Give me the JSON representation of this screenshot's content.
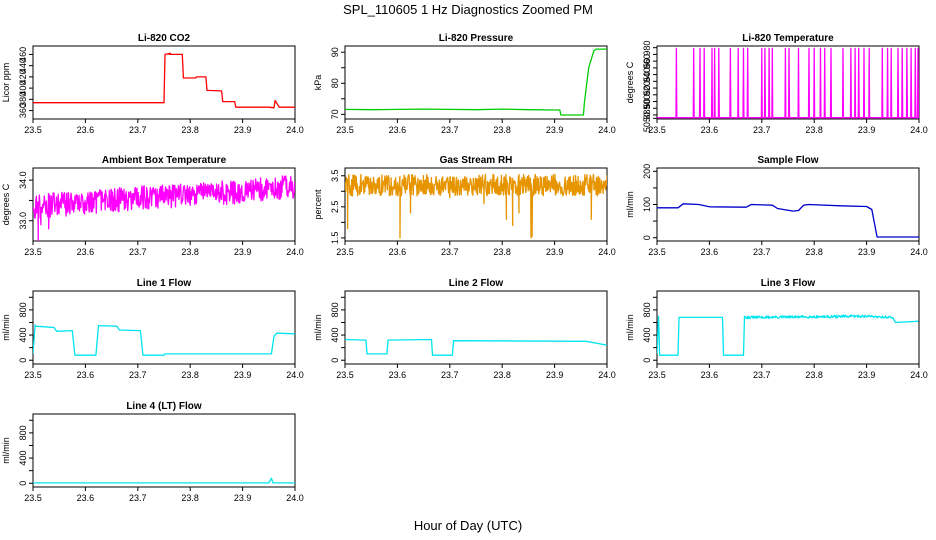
{
  "figure": {
    "title": "SPL_110605  1 Hz Diagnostics Zoomed PM",
    "xlabel": "Hour of Day (UTC)"
  },
  "chart_data": [
    {
      "type": "line",
      "title": "Li-820 CO2",
      "ylabel": "Licor ppm",
      "xlim": [
        23.5,
        24.0
      ],
      "ylim": [
        345,
        475
      ],
      "xticks": [
        "23.5",
        "23.6",
        "23.7",
        "23.8",
        "23.9",
        "24.0"
      ],
      "yticks": [
        360,
        380,
        400,
        420,
        440,
        460
      ],
      "color": "#ff0000",
      "series": [
        {
          "x": [
            23.5,
            23.6,
            23.7,
            23.75,
            23.752,
            23.762,
            23.76,
            23.785,
            23.787,
            23.81,
            23.812,
            23.83,
            23.832,
            23.86,
            23.862,
            23.885,
            23.887,
            23.95,
            23.96,
            23.962,
            23.97,
            24.0
          ],
          "y": [
            374,
            374,
            374,
            374,
            460,
            462,
            460,
            460,
            418,
            418,
            420,
            420,
            396,
            395,
            376,
            376,
            366,
            366,
            365,
            378,
            366,
            366
          ]
        }
      ]
    },
    {
      "type": "line",
      "title": "Li-820 Pressure",
      "ylabel": "kPa",
      "xlim": [
        23.5,
        24.0
      ],
      "ylim": [
        68.5,
        92
      ],
      "xticks": [
        "23.5",
        "23.6",
        "23.7",
        "23.8",
        "23.9",
        "24.0"
      ],
      "yticks": [
        70,
        75,
        80,
        85,
        90
      ],
      "ytick_labels": [
        "70",
        "",
        "80",
        "",
        "90"
      ],
      "color": "#00cc00",
      "series": [
        {
          "x": [
            23.5,
            23.55,
            23.6,
            23.65,
            23.7,
            23.75,
            23.8,
            23.85,
            23.9,
            23.91,
            23.912,
            23.955,
            23.957,
            23.965,
            23.975,
            23.98,
            24.0
          ],
          "y": [
            71.6,
            71.5,
            71.6,
            71.7,
            71.6,
            71.5,
            71.7,
            71.5,
            71.4,
            71.4,
            69.8,
            69.8,
            74.0,
            85.0,
            90.5,
            91.0,
            91.0
          ]
        }
      ]
    },
    {
      "type": "line",
      "title": "Li-820 Temperature",
      "ylabel": "degrees C",
      "xlim": [
        23.5,
        24.0
      ],
      "ylim": [
        50.884,
        50.9925
      ],
      "xticks": [
        "23.5",
        "23.6",
        "23.7",
        "23.8",
        "23.9",
        "24.0"
      ],
      "yticks": [
        50.885,
        50.89,
        50.9,
        50.91,
        50.92,
        50.93,
        50.94,
        50.95,
        50.96,
        50.97,
        50.98,
        50.99
      ],
      "ytick_labels": [
        "50.885",
        "",
        "50.900",
        "",
        "50.920",
        "",
        "50.940",
        "",
        "50.960",
        "",
        "50.980",
        ""
      ],
      "color": "#ff00ff",
      "baseline": 50.886,
      "spike_top": 50.989,
      "spikes": [
        23.537,
        23.57,
        23.582,
        23.59,
        23.605,
        23.61,
        23.618,
        23.64,
        23.655,
        23.665,
        23.673,
        23.7,
        23.706,
        23.714,
        23.72,
        23.745,
        23.752,
        23.77,
        23.79,
        23.8,
        23.812,
        23.82,
        23.832,
        23.855,
        23.87,
        23.878,
        23.885,
        23.895,
        23.905,
        23.93,
        23.94,
        23.947,
        23.96,
        23.968,
        23.977,
        23.985,
        23.993,
        23.998
      ]
    },
    {
      "type": "line",
      "title": "Ambient Box Temperature",
      "ylabel": "degrees C",
      "xlim": [
        23.5,
        24.0
      ],
      "ylim": [
        32.5,
        34.3
      ],
      "xticks": [
        "23.5",
        "23.6",
        "23.7",
        "23.8",
        "23.9",
        "24.0"
      ],
      "yticks": [
        33.0,
        33.5,
        34.0
      ],
      "ytick_labels": [
        "33.0",
        "",
        "34.0"
      ],
      "color": "#ff00ff",
      "trend": [
        [
          23.5,
          33.35
        ],
        [
          23.6,
          33.45
        ],
        [
          23.7,
          33.55
        ],
        [
          23.8,
          33.65
        ],
        [
          23.9,
          33.72
        ],
        [
          24.0,
          33.85
        ]
      ],
      "noise": 0.3,
      "dips": [
        [
          23.51,
          32.5
        ],
        [
          23.515,
          32.9
        ],
        [
          23.53,
          32.8
        ]
      ]
    },
    {
      "type": "line",
      "title": "Gas Stream RH",
      "ylabel": "percent",
      "xlim": [
        23.5,
        24.0
      ],
      "ylim": [
        1.4,
        3.75
      ],
      "xticks": [
        "23.5",
        "23.6",
        "23.7",
        "23.8",
        "23.9",
        "24.0"
      ],
      "yticks": [
        1.5,
        2.0,
        2.5,
        3.0,
        3.5
      ],
      "ytick_labels": [
        "1.5",
        "",
        "2.5",
        "",
        "3.5"
      ],
      "color": "#e69500",
      "trend": [
        [
          23.5,
          3.2
        ],
        [
          24.0,
          3.2
        ]
      ],
      "noise": 0.35,
      "dips": [
        [
          23.505,
          1.8
        ],
        [
          23.605,
          1.5
        ],
        [
          23.625,
          2.3
        ],
        [
          23.7,
          2.8
        ],
        [
          23.765,
          2.6
        ],
        [
          23.808,
          2.1
        ],
        [
          23.82,
          1.9
        ],
        [
          23.832,
          2.3
        ],
        [
          23.855,
          1.5
        ],
        [
          23.857,
          1.55
        ],
        [
          23.97,
          2.1
        ]
      ]
    },
    {
      "type": "line",
      "title": "Sample Flow",
      "ylabel": "ml/min",
      "xlim": [
        23.5,
        24.0
      ],
      "ylim": [
        -10,
        210
      ],
      "xticks": [
        "23.5",
        "23.6",
        "23.7",
        "23.8",
        "23.9",
        "24.0"
      ],
      "yticks": [
        0,
        50,
        100,
        150,
        200
      ],
      "ytick_labels": [
        "0",
        "",
        "100",
        "",
        "200"
      ],
      "color": "#0000cc",
      "series": [
        {
          "x": [
            23.5,
            23.54,
            23.55,
            23.58,
            23.6,
            23.67,
            23.68,
            23.72,
            23.73,
            23.76,
            23.77,
            23.78,
            23.79,
            23.85,
            23.9,
            23.91,
            23.92,
            23.93,
            24.0
          ],
          "y": [
            90,
            90,
            102,
            100,
            93,
            92,
            100,
            98,
            88,
            80,
            82,
            98,
            100,
            96,
            94,
            85,
            2,
            2,
            2
          ]
        }
      ]
    },
    {
      "type": "line",
      "title": "Line 1 Flow",
      "ylabel": "ml/min",
      "xlim": [
        23.5,
        24.0
      ],
      "ylim": [
        -60,
        1100
      ],
      "xticks": [
        "23.5",
        "23.6",
        "23.7",
        "23.8",
        "23.9",
        "24.0"
      ],
      "yticks": [
        0,
        200,
        400,
        600,
        800,
        1000
      ],
      "ytick_labels": [
        "0",
        "400",
        "800"
      ],
      "ytick_label_values": [
        0,
        400,
        800
      ],
      "color": "#00e5ee",
      "series": [
        {
          "x": [
            23.5,
            23.504,
            23.505,
            23.54,
            23.545,
            23.575,
            23.58,
            23.62,
            23.625,
            23.66,
            23.665,
            23.705,
            23.71,
            23.75,
            23.752,
            23.955,
            23.96,
            23.965,
            24.0
          ],
          "y": [
            100,
            560,
            540,
            520,
            460,
            470,
            80,
            80,
            550,
            540,
            480,
            470,
            80,
            80,
            100,
            100,
            380,
            430,
            420
          ]
        }
      ]
    },
    {
      "type": "line",
      "title": "Line 2 Flow",
      "ylabel": "ml/min",
      "xlim": [
        23.5,
        24.0
      ],
      "ylim": [
        -60,
        1100
      ],
      "xticks": [
        "23.5",
        "23.6",
        "23.7",
        "23.8",
        "23.9",
        "24.0"
      ],
      "yticks": [
        0,
        200,
        400,
        600,
        800,
        1000
      ],
      "ytick_labels": [
        "0",
        "400",
        "800"
      ],
      "ytick_label_values": [
        0,
        400,
        800
      ],
      "color": "#00e5ee",
      "series": [
        {
          "x": [
            23.5,
            23.54,
            23.542,
            23.58,
            23.582,
            23.665,
            23.667,
            23.705,
            23.707,
            23.96,
            24.0
          ],
          "y": [
            330,
            320,
            100,
            100,
            320,
            330,
            80,
            80,
            310,
            300,
            240
          ]
        }
      ]
    },
    {
      "type": "line",
      "title": "Line 3 Flow",
      "ylabel": "ml/min",
      "xlim": [
        23.5,
        24.0
      ],
      "ylim": [
        -60,
        1100
      ],
      "xticks": [
        "23.5",
        "23.6",
        "23.7",
        "23.8",
        "23.9",
        "24.0"
      ],
      "yticks": [
        0,
        200,
        400,
        600,
        800,
        1000
      ],
      "ytick_labels": [
        "0",
        "400",
        "800"
      ],
      "ytick_label_values": [
        0,
        400,
        800
      ],
      "color": "#00e5ee",
      "series": [
        {
          "x": [
            23.5,
            23.503,
            23.505,
            23.54,
            23.542,
            23.625,
            23.627,
            23.665,
            23.667,
            23.67,
            23.8,
            23.9,
            23.95,
            23.955,
            24.0
          ],
          "y": [
            100,
            700,
            80,
            80,
            680,
            680,
            80,
            80,
            700,
            680,
            690,
            700,
            680,
            600,
            620
          ]
        }
      ]
    },
    {
      "type": "line",
      "title": "Line 4 (LT) Flow",
      "ylabel": "ml/min",
      "xlim": [
        23.5,
        24.0
      ],
      "ylim": [
        -60,
        1100
      ],
      "xticks": [
        "23.5",
        "23.6",
        "23.7",
        "23.8",
        "23.9",
        "24.0"
      ],
      "yticks": [
        0,
        200,
        400,
        600,
        800,
        1000
      ],
      "ytick_labels": [
        "0",
        "400",
        "800"
      ],
      "ytick_label_values": [
        0,
        400,
        800
      ],
      "color": "#00e5ee",
      "series": [
        {
          "x": [
            23.5,
            23.95,
            23.955,
            23.958,
            23.96,
            24.0
          ],
          "y": [
            5,
            5,
            80,
            5,
            5,
            5
          ]
        }
      ]
    }
  ]
}
